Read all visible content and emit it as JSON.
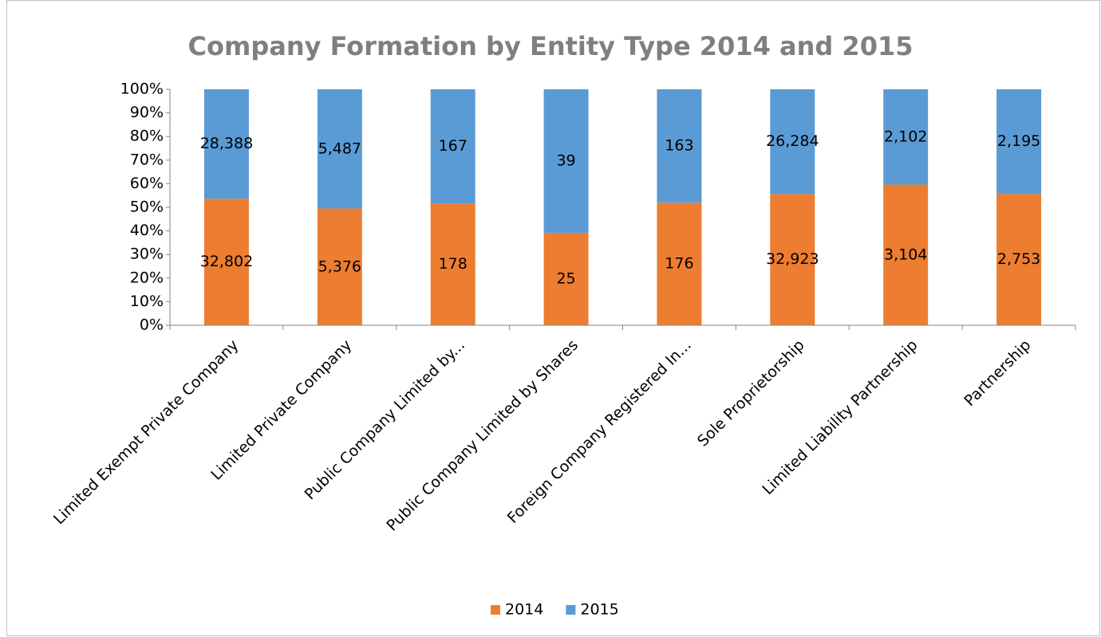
{
  "chart_data": {
    "type": "bar",
    "stacking": "percent",
    "title": "Company Formation by Entity Type 2014 and 2015",
    "categories": [
      "Limited Exempt Private Company",
      "Limited Private Company",
      "Public Company Limited by...",
      "Public Company Limited by Shares",
      "Foreign Company Registered In...",
      "Sole Proprietorship",
      "Limited Liability Partnership",
      "Partnership"
    ],
    "series": [
      {
        "name": "2014",
        "color": "#ed7d31",
        "values": [
          32802,
          5376,
          178,
          25,
          176,
          32923,
          3104,
          2753
        ],
        "value_labels": [
          "32,802",
          "5,376",
          "178",
          "25",
          "176",
          "32,923",
          "3,104",
          "2,753"
        ]
      },
      {
        "name": "2015",
        "color": "#5b9bd5",
        "values": [
          28388,
          5487,
          167,
          39,
          163,
          26284,
          2102,
          2195
        ],
        "value_labels": [
          "28,388",
          "5,487",
          "167",
          "39",
          "163",
          "26,284",
          "2,102",
          "2,195"
        ]
      }
    ],
    "ylim": [
      0,
      100
    ],
    "yticks": [
      {
        "value": 0,
        "label": "0%"
      },
      {
        "value": 10,
        "label": "10%"
      },
      {
        "value": 20,
        "label": "20%"
      },
      {
        "value": 30,
        "label": "30%"
      },
      {
        "value": 40,
        "label": "40%"
      },
      {
        "value": 50,
        "label": "50%"
      },
      {
        "value": 60,
        "label": "60%"
      },
      {
        "value": 70,
        "label": "70%"
      },
      {
        "value": 80,
        "label": "80%"
      },
      {
        "value": 90,
        "label": "90%"
      },
      {
        "value": 100,
        "label": "100%"
      }
    ],
    "legend": "bottom"
  }
}
